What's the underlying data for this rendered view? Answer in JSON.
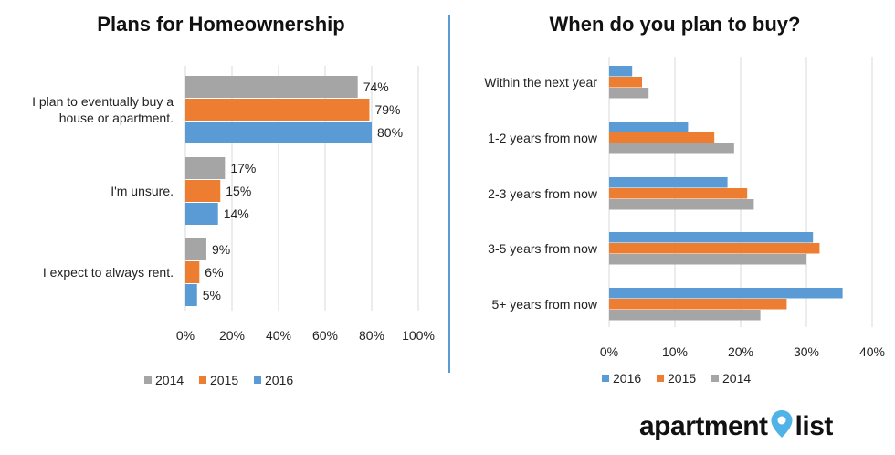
{
  "chart_data": [
    {
      "type": "bar",
      "orientation": "horizontal",
      "title": "Plans for Homeownership",
      "categories": [
        "I plan to eventually buy a house or apartment.",
        "I'm unsure.",
        "I expect to always rent."
      ],
      "series": [
        {
          "name": "2014",
          "values": [
            74,
            17,
            9
          ],
          "color": "#a5a5a5"
        },
        {
          "name": "2015",
          "values": [
            79,
            15,
            6
          ],
          "color": "#ed7d31"
        },
        {
          "name": "2016",
          "values": [
            80,
            14,
            5
          ],
          "color": "#5b9bd5"
        }
      ],
      "data_labels": [
        [
          "74%",
          "79%",
          "80%"
        ],
        [
          "17%",
          "15%",
          "14%"
        ],
        [
          "9%",
          "6%",
          "5%"
        ]
      ],
      "xlim": [
        0,
        100
      ],
      "ticks": [
        "0%",
        "20%",
        "40%",
        "60%",
        "80%",
        "100%"
      ],
      "grid": true,
      "legend": "bottom"
    },
    {
      "type": "bar",
      "orientation": "horizontal",
      "title": "When do you plan to buy?",
      "categories": [
        "Within the next year",
        "1-2 years from now",
        "2-3 years from now",
        "3-5 years from now",
        "5+ years from now"
      ],
      "series": [
        {
          "name": "2016",
          "values": [
            3.5,
            12,
            18,
            31,
            35.5
          ],
          "color": "#5b9bd5"
        },
        {
          "name": "2015",
          "values": [
            5,
            16,
            21,
            32,
            27
          ],
          "color": "#ed7d31"
        },
        {
          "name": "2014",
          "values": [
            6,
            19,
            22,
            30,
            23
          ],
          "color": "#a5a5a5"
        }
      ],
      "xlim": [
        0,
        40
      ],
      "ticks": [
        "0%",
        "10%",
        "20%",
        "30%",
        "40%"
      ],
      "grid": true,
      "legend": "bottom"
    }
  ],
  "logo": {
    "text_left": "apartment",
    "text_right": "list",
    "pin_color": "#4fb3e8"
  }
}
